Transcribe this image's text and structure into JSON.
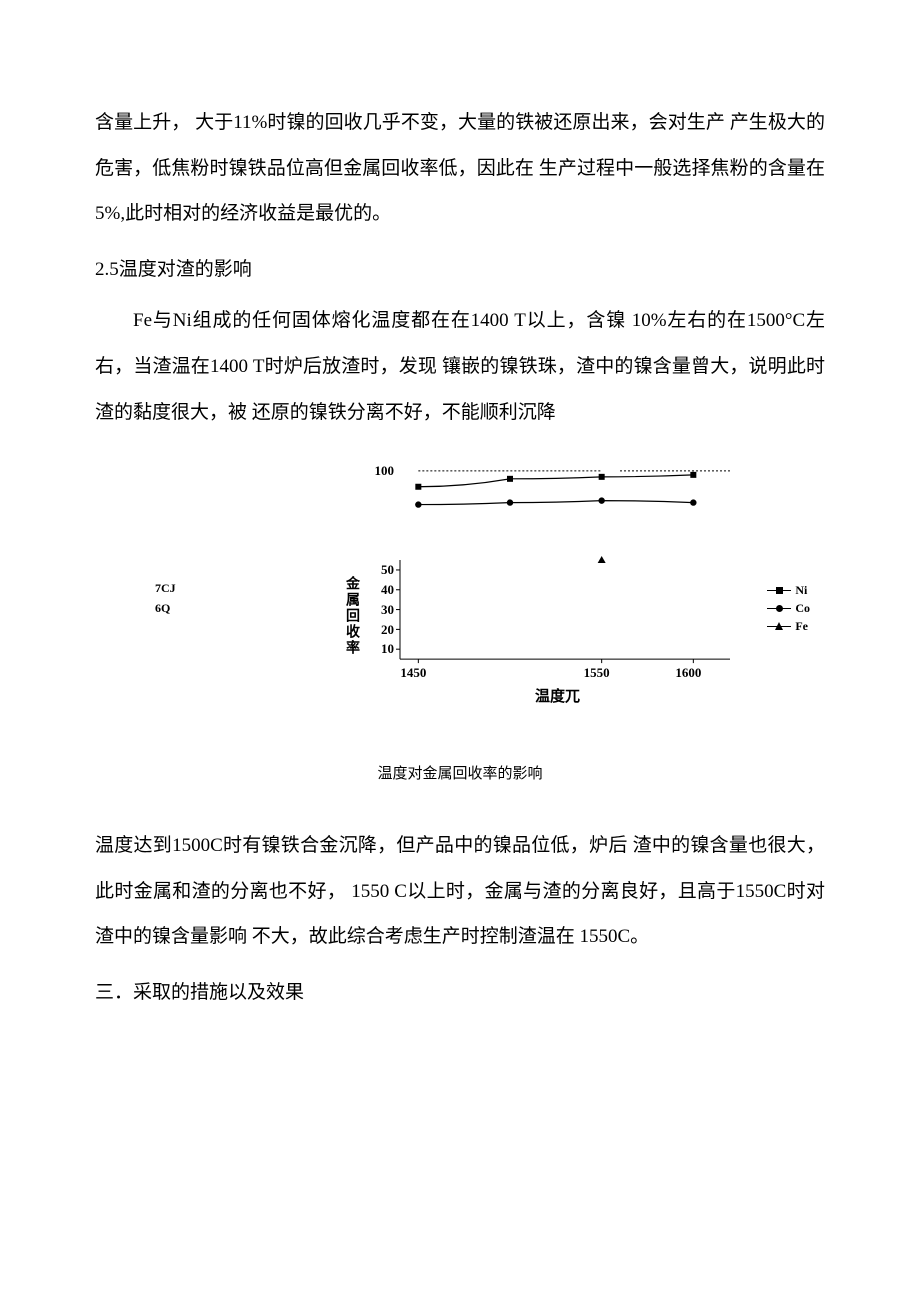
{
  "para1": "含量上升，  大于11%时镍的回收几乎不变，大量的铁被还原出来，会对生产 产生极大的危害，低焦粉时镍铁品位高但金属回收率低，因此在 生产过程中一般选择焦粉的含量在5%,此时相对的经济收益是最优的。",
  "heading1": "2.5温度对渣的影响",
  "para2": "Fe与Ni组成的任何固体熔化温度都在在1400 T以上，含镍 10%左右的在1500°C左右，当渣温在1400 T时炉后放渣时，发现 镶嵌的镍铁珠，渣中的镍含量曾大，说明此时渣的黏度很大，被 还原的镍铁分离不好，不能顺利沉降",
  "side1": "7CJ",
  "side2": "6Q",
  "chart": {
    "ylabel_text": "金属回收率",
    "xlabel_text": "温度兀",
    "xlim": [
      1440,
      1620
    ],
    "ylim": [
      0,
      105
    ],
    "yticks": [
      10,
      20,
      30,
      40,
      50,
      100
    ],
    "xticks": [
      1450,
      1550,
      1600
    ],
    "series": [
      {
        "name": "Ni",
        "marker": "square",
        "x": [
          1450,
          1500,
          1550,
          1600
        ],
        "y": [
          92,
          96,
          97,
          98
        ]
      },
      {
        "name": "Co",
        "marker": "circle",
        "x": [
          1450,
          1500,
          1550,
          1600
        ],
        "y": [
          83,
          84,
          85,
          84
        ]
      },
      {
        "name": "Fe",
        "marker": "triangle",
        "x": [
          1550
        ],
        "y": [
          55
        ]
      }
    ],
    "top_dash_segments": [
      [
        1450,
        1550
      ],
      [
        1560,
        1620
      ]
    ],
    "colors": {
      "line": "#000000",
      "bg": "#ffffff"
    },
    "line_width": 1.2,
    "marker_size": 6,
    "font_size": 13
  },
  "caption": "温度对金属回收率的影响",
  "para3": "温度达到1500C时有镍铁合金沉降，但产品中的镍品位低，炉后 渣中的镍含量也很大，此时金属和渣的分离也不好，      1550 C以上时，金属与渣的分离良好，且高于1550C时对渣中的镍含量影响 不大，故此综合考虑生产时控制渣温在 1550C。",
  "heading2": "三．采取的措施以及效果"
}
